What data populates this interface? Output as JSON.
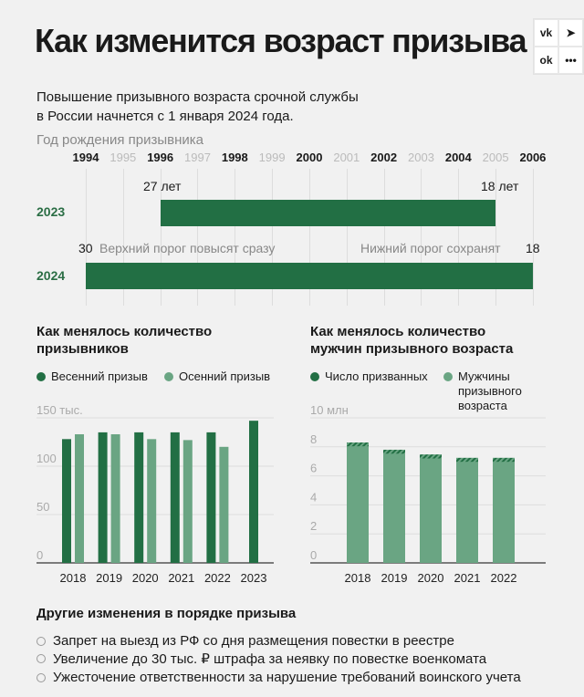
{
  "title": "Как изменится возраст призыва",
  "share": [
    "vk-icon",
    "telegram-icon",
    "ok-icon",
    "more-icon"
  ],
  "subtitle_lines": [
    "Повышение призывного возраста срочной службы",
    "в России начнется с 1 января 2024 года."
  ],
  "timeline": {
    "axis_label": "Год рождения призывника",
    "years": [
      1994,
      1995,
      1996,
      1997,
      1998,
      1999,
      2000,
      2001,
      2002,
      2003,
      2004,
      2005,
      2006
    ],
    "rows": [
      {
        "label": "2023",
        "from": 1996,
        "to": 2005,
        "left_note": "27 лет",
        "right_note": "18 лет"
      },
      {
        "label": "2024",
        "from": 1994,
        "to": 2006,
        "left_num": "30",
        "left_note": "Верхний порог повысят сразу",
        "right_note": "Нижний порог сохранят",
        "right_num": "18"
      }
    ],
    "bar_color": "#226f44"
  },
  "chart_data": [
    {
      "type": "bar",
      "title": "Как менялось количество призывников",
      "categories": [
        "2018",
        "2019",
        "2020",
        "2021",
        "2022",
        "2023"
      ],
      "series": [
        {
          "name": "Весенний призыв",
          "color": "#226f44",
          "values": [
            128,
            135,
            135,
            135,
            135,
            147
          ]
        },
        {
          "name": "Осенний призыв",
          "color": "#6aa583",
          "values": [
            133,
            133,
            128,
            127,
            120,
            null
          ]
        }
      ],
      "ylim": [
        0,
        150
      ],
      "yticks": [
        "0",
        "50",
        "100",
        "150 тыс."
      ],
      "ytick_values": [
        0,
        50,
        100,
        150
      ],
      "grid": true,
      "legend": "top"
    },
    {
      "type": "bar",
      "stacked": true,
      "title": "Как менялось количество мужчин призывного возраста",
      "categories": [
        "2018",
        "2019",
        "2020",
        "2021",
        "2022"
      ],
      "series": [
        {
          "name": "Мужчины призывного возраста",
          "color": "#6aa583",
          "values": [
            8.3,
            7.8,
            7.47,
            7.24,
            7.24
          ]
        },
        {
          "name": "Число призванных",
          "color": "#226f44",
          "values": [
            0.26,
            0.27,
            0.27,
            0.27,
            0.27
          ]
        }
      ],
      "ylim": [
        0,
        10
      ],
      "yticks": [
        "0",
        "2",
        "4",
        "6",
        "8",
        "10 млн"
      ],
      "ytick_values": [
        0,
        2,
        4,
        6,
        8,
        10
      ],
      "grid": true,
      "legend": "top"
    }
  ],
  "legend2_lines": [
    "Мужчины",
    "призывного",
    "возраста"
  ],
  "other": {
    "title": "Другие изменения в порядке призыва",
    "items": [
      "Запрет на выезд из РФ со дня размещения повестки в реестре",
      "Увеличение до 30 тыс. ₽ штрафа за неявку по повестке военкомата",
      "Ужесточение ответственности за нарушение требований воинского учета"
    ]
  }
}
